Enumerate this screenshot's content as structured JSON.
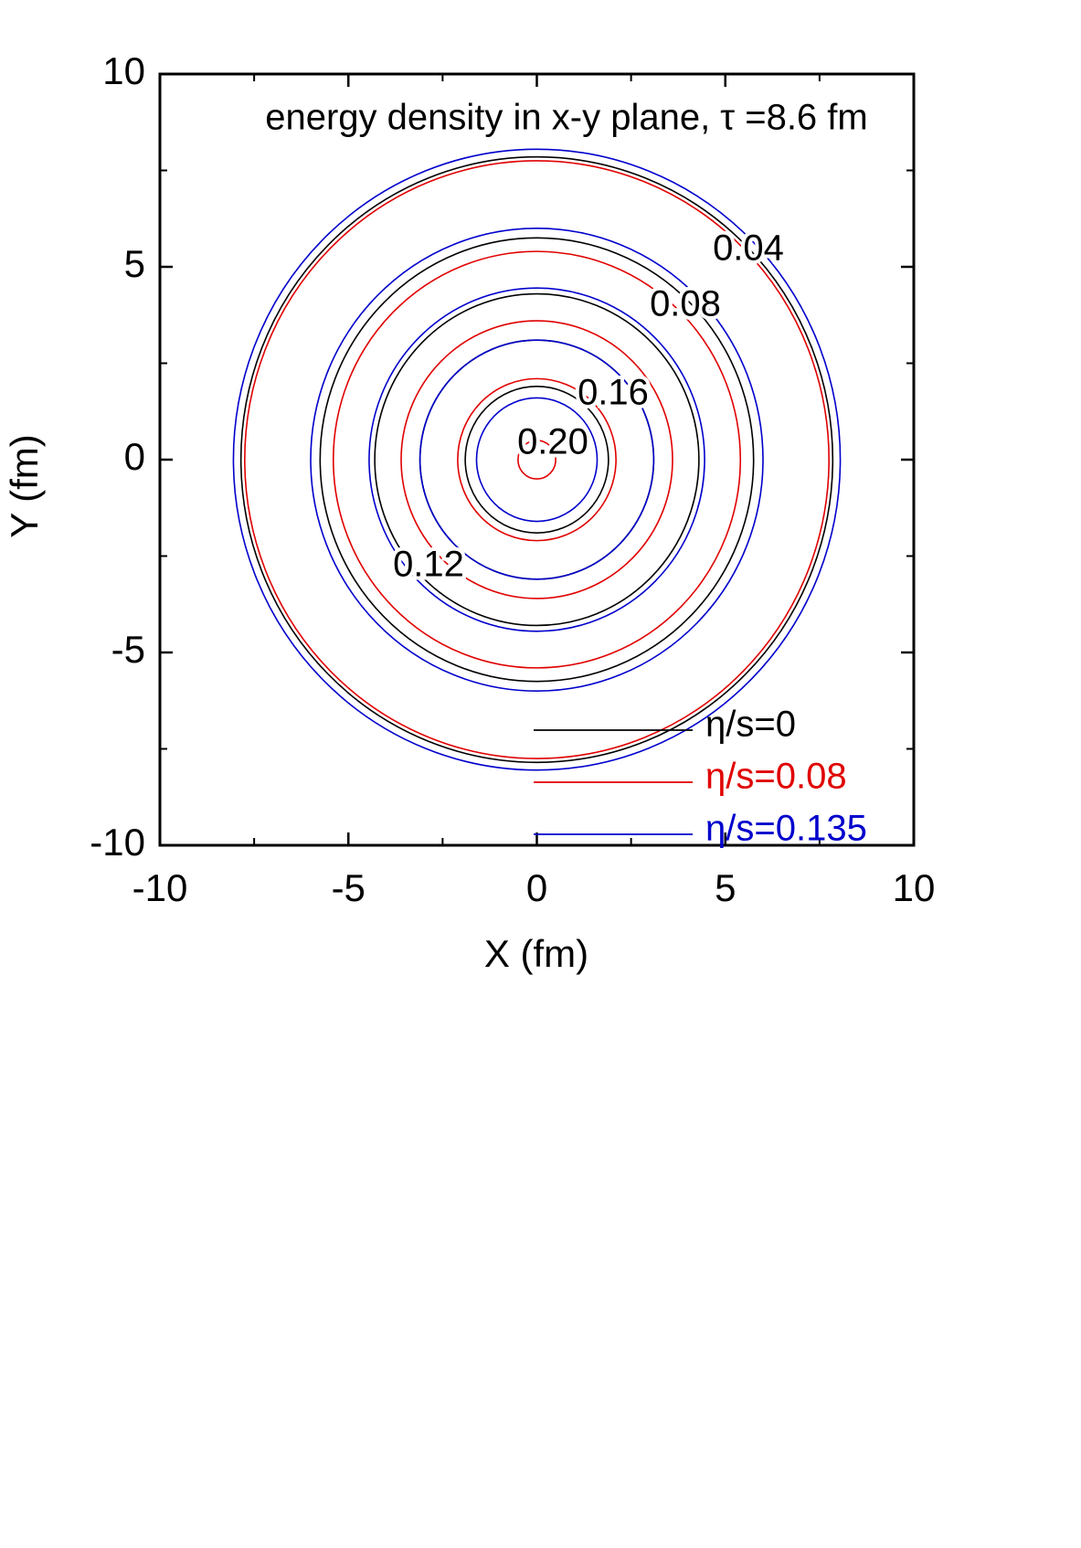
{
  "chart_data": {
    "type": "contour",
    "title": "energy density in x-y plane, τ =8.6 fm",
    "x_label": "X (fm)",
    "y_label": "Y (fm)",
    "levels": [
      0.04,
      0.08,
      0.12,
      0.16,
      {
        "value": 0.2,
        "label": "0.20"
      }
    ],
    "series": [
      {
        "name": "η/s=0",
        "color": "#000000",
        "values": [
          7.85,
          5.75,
          4.3,
          3.1,
          1.9
        ]
      },
      {
        "name": "η/s=0.08",
        "color": "#e00000",
        "values": [
          7.75,
          5.4,
          3.6,
          2.1,
          0.5
        ]
      },
      {
        "name": "η/s=0.135",
        "color": "#0000cc",
        "values": [
          8.05,
          6.0,
          4.45,
          3.1,
          1.6
        ]
      }
    ],
    "xlim": [
      -10,
      10
    ],
    "ylim": [
      -10,
      10
    ],
    "xticks": [
      -10,
      -5,
      0,
      5,
      10
    ],
    "yticks": [
      -10,
      -5,
      0,
      5,
      10
    ]
  }
}
